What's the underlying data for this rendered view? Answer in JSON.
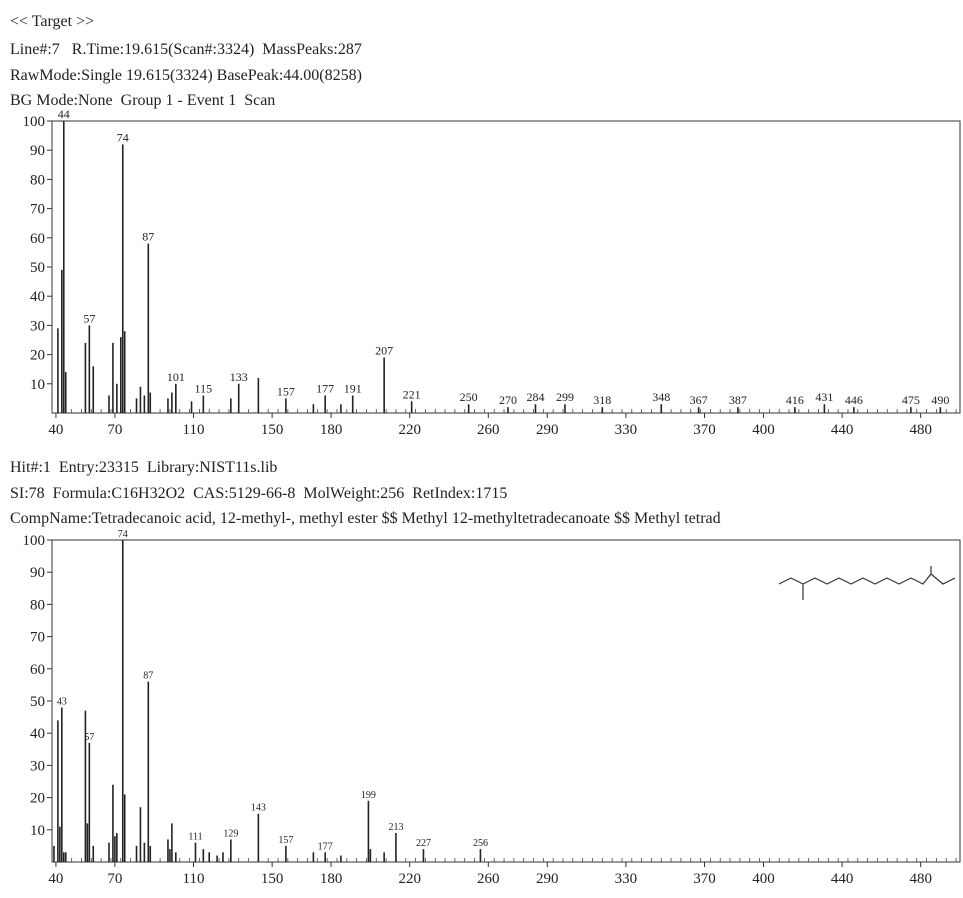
{
  "header": {
    "target": "<< Target >>",
    "line_info": "Line#:7   R.Time:19.615(Scan#:3324)  MassPeaks:287",
    "raw_mode": "RawMode:Single 19.615(3324) BasePeak:44.00(8258)",
    "bg_mode": "BG Mode:None  Group 1 - Event 1  Scan"
  },
  "hit": {
    "line1": "Hit#:1  Entry:23315  Library:NIST11s.lib",
    "line2": "SI:78  Formula:C16H32O2  CAS:5129-66-8  MolWeight:256  RetIndex:1715",
    "line3": "CompName:Tetradecanoic acid, 12-methyl-, methyl ester $$ Methyl 12-methyltetradecanoate $$ Methyl tetrad"
  },
  "chart_data": [
    {
      "type": "bar",
      "name": "target-spectrum",
      "xlim": [
        38,
        500
      ],
      "ylim": [
        0,
        100
      ],
      "x_ticks": [
        40,
        70,
        110,
        150,
        180,
        220,
        260,
        290,
        330,
        370,
        400,
        440,
        480
      ],
      "y_ticks": [
        10,
        20,
        30,
        40,
        50,
        60,
        70,
        80,
        90,
        100
      ],
      "peaks": [
        {
          "x": 41,
          "y": 29
        },
        {
          "x": 43,
          "y": 49
        },
        {
          "x": 44,
          "y": 100
        },
        {
          "x": 45,
          "y": 14
        },
        {
          "x": 55,
          "y": 24
        },
        {
          "x": 57,
          "y": 30
        },
        {
          "x": 59,
          "y": 16
        },
        {
          "x": 67,
          "y": 6
        },
        {
          "x": 69,
          "y": 24
        },
        {
          "x": 71,
          "y": 10
        },
        {
          "x": 73,
          "y": 26
        },
        {
          "x": 74,
          "y": 92
        },
        {
          "x": 75,
          "y": 28
        },
        {
          "x": 81,
          "y": 5
        },
        {
          "x": 83,
          "y": 9
        },
        {
          "x": 85,
          "y": 6
        },
        {
          "x": 87,
          "y": 58
        },
        {
          "x": 88,
          "y": 7
        },
        {
          "x": 97,
          "y": 5
        },
        {
          "x": 99,
          "y": 7
        },
        {
          "x": 101,
          "y": 10
        },
        {
          "x": 109,
          "y": 4
        },
        {
          "x": 115,
          "y": 6
        },
        {
          "x": 129,
          "y": 5
        },
        {
          "x": 133,
          "y": 10
        },
        {
          "x": 143,
          "y": 12
        },
        {
          "x": 157,
          "y": 5
        },
        {
          "x": 171,
          "y": 3
        },
        {
          "x": 177,
          "y": 6
        },
        {
          "x": 185,
          "y": 3
        },
        {
          "x": 191,
          "y": 6
        },
        {
          "x": 207,
          "y": 19
        },
        {
          "x": 221,
          "y": 4
        },
        {
          "x": 250,
          "y": 3
        },
        {
          "x": 270,
          "y": 2
        },
        {
          "x": 284,
          "y": 3
        },
        {
          "x": 299,
          "y": 3
        },
        {
          "x": 318,
          "y": 2
        },
        {
          "x": 348,
          "y": 3
        },
        {
          "x": 367,
          "y": 2
        },
        {
          "x": 387,
          "y": 2
        },
        {
          "x": 416,
          "y": 2
        },
        {
          "x": 431,
          "y": 3
        },
        {
          "x": 446,
          "y": 2
        },
        {
          "x": 475,
          "y": 2
        },
        {
          "x": 490,
          "y": 2
        }
      ],
      "peak_labels": [
        {
          "x": 44,
          "y": 100,
          "text": "44"
        },
        {
          "x": 74,
          "y": 92,
          "text": "74"
        },
        {
          "x": 87,
          "y": 58,
          "text": "87"
        },
        {
          "x": 57,
          "y": 30,
          "text": "57"
        },
        {
          "x": 101,
          "y": 10,
          "text": "101"
        },
        {
          "x": 115,
          "y": 6,
          "text": "115"
        },
        {
          "x": 133,
          "y": 10,
          "text": "133"
        },
        {
          "x": 157,
          "y": 5,
          "text": "157"
        },
        {
          "x": 177,
          "y": 6,
          "text": "177"
        },
        {
          "x": 191,
          "y": 6,
          "text": "191"
        },
        {
          "x": 207,
          "y": 19,
          "text": "207"
        },
        {
          "x": 221,
          "y": 4,
          "text": "221"
        },
        {
          "x": 250,
          "y": 3,
          "text": "250"
        },
        {
          "x": 270,
          "y": 2,
          "text": "270"
        },
        {
          "x": 284,
          "y": 3,
          "text": "284"
        },
        {
          "x": 299,
          "y": 3,
          "text": "299"
        },
        {
          "x": 318,
          "y": 2,
          "text": "318"
        },
        {
          "x": 348,
          "y": 3,
          "text": "348"
        },
        {
          "x": 367,
          "y": 2,
          "text": "367"
        },
        {
          "x": 387,
          "y": 2,
          "text": "387"
        },
        {
          "x": 416,
          "y": 2,
          "text": "416"
        },
        {
          "x": 431,
          "y": 3,
          "text": "431"
        },
        {
          "x": 446,
          "y": 2,
          "text": "446"
        },
        {
          "x": 475,
          "y": 2,
          "text": "475"
        },
        {
          "x": 490,
          "y": 2,
          "text": "490"
        }
      ]
    },
    {
      "type": "bar",
      "name": "library-spectrum",
      "xlim": [
        38,
        500
      ],
      "ylim": [
        0,
        100
      ],
      "x_ticks": [
        40,
        70,
        110,
        150,
        180,
        220,
        260,
        290,
        330,
        370,
        400,
        440,
        480
      ],
      "y_ticks": [
        10,
        20,
        30,
        40,
        50,
        60,
        70,
        80,
        90,
        100
      ],
      "peaks": [
        {
          "x": 39,
          "y": 5
        },
        {
          "x": 41,
          "y": 44
        },
        {
          "x": 42,
          "y": 11
        },
        {
          "x": 43,
          "y": 48
        },
        {
          "x": 44,
          "y": 3
        },
        {
          "x": 45,
          "y": 3
        },
        {
          "x": 55,
          "y": 47
        },
        {
          "x": 56,
          "y": 12
        },
        {
          "x": 57,
          "y": 37
        },
        {
          "x": 59,
          "y": 5
        },
        {
          "x": 67,
          "y": 6
        },
        {
          "x": 69,
          "y": 24
        },
        {
          "x": 70,
          "y": 8
        },
        {
          "x": 71,
          "y": 9
        },
        {
          "x": 74,
          "y": 100
        },
        {
          "x": 75,
          "y": 21
        },
        {
          "x": 81,
          "y": 5
        },
        {
          "x": 83,
          "y": 17
        },
        {
          "x": 85,
          "y": 6
        },
        {
          "x": 87,
          "y": 56
        },
        {
          "x": 88,
          "y": 5
        },
        {
          "x": 97,
          "y": 7
        },
        {
          "x": 98,
          "y": 4
        },
        {
          "x": 99,
          "y": 12
        },
        {
          "x": 101,
          "y": 3
        },
        {
          "x": 111,
          "y": 6
        },
        {
          "x": 115,
          "y": 4
        },
        {
          "x": 118,
          "y": 3
        },
        {
          "x": 122,
          "y": 2
        },
        {
          "x": 125,
          "y": 3
        },
        {
          "x": 129,
          "y": 7
        },
        {
          "x": 143,
          "y": 15
        },
        {
          "x": 157,
          "y": 5
        },
        {
          "x": 171,
          "y": 3
        },
        {
          "x": 177,
          "y": 3
        },
        {
          "x": 185,
          "y": 2
        },
        {
          "x": 199,
          "y": 19
        },
        {
          "x": 200,
          "y": 4
        },
        {
          "x": 207,
          "y": 3
        },
        {
          "x": 213,
          "y": 9
        },
        {
          "x": 227,
          "y": 4
        },
        {
          "x": 256,
          "y": 4
        }
      ],
      "peak_labels": [
        {
          "x": 74,
          "y": 100,
          "text": "74"
        },
        {
          "x": 87,
          "y": 56,
          "text": "87"
        },
        {
          "x": 43,
          "y": 48,
          "text": "43"
        },
        {
          "x": 57,
          "y": 37,
          "text": "57"
        },
        {
          "x": 111,
          "y": 6,
          "text": "111"
        },
        {
          "x": 129,
          "y": 7,
          "text": "129"
        },
        {
          "x": 143,
          "y": 15,
          "text": "143"
        },
        {
          "x": 157,
          "y": 5,
          "text": "157"
        },
        {
          "x": 177,
          "y": 3,
          "text": "177"
        },
        {
          "x": 199,
          "y": 19,
          "text": "199"
        },
        {
          "x": 213,
          "y": 9,
          "text": "213"
        },
        {
          "x": 227,
          "y": 4,
          "text": "227"
        },
        {
          "x": 256,
          "y": 4,
          "text": "256"
        }
      ]
    }
  ]
}
